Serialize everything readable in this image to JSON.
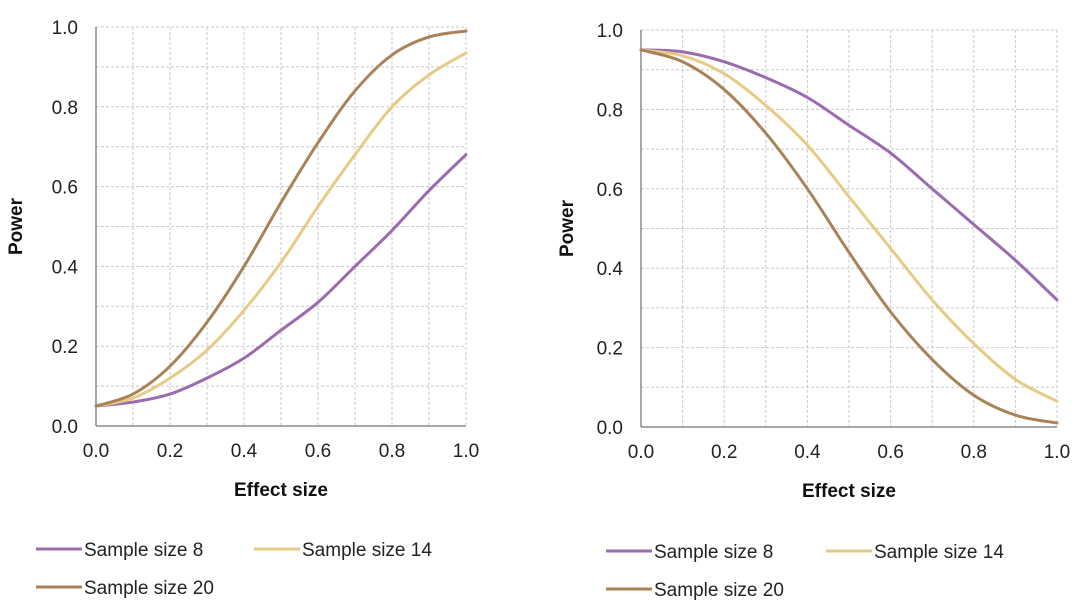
{
  "colors": {
    "sample_8": "#9B6BB0",
    "sample_14": "#E6CB86",
    "sample_20": "#A88359",
    "grid": "#c8c8c8",
    "axis": "#8a8a8a"
  },
  "chart_data": [
    {
      "type": "line",
      "xlabel": "Effect size",
      "ylabel": "Power",
      "xlim": [
        0,
        1
      ],
      "ylim": [
        0,
        1
      ],
      "x_ticks": [
        "0.0",
        "0.2",
        "0.4",
        "0.6",
        "0.8",
        "1.0"
      ],
      "y_ticks": [
        "0.0",
        "0.2",
        "0.4",
        "0.6",
        "0.8",
        "1.0"
      ],
      "grid": true,
      "legend_position": "bottom",
      "x": [
        0.0,
        0.1,
        0.2,
        0.3,
        0.4,
        0.5,
        0.6,
        0.7,
        0.8,
        0.9,
        1.0
      ],
      "series": [
        {
          "name": "Sample size 8",
          "color_key": "sample_8",
          "values": [
            0.05,
            0.06,
            0.08,
            0.12,
            0.17,
            0.24,
            0.31,
            0.4,
            0.49,
            0.59,
            0.68
          ]
        },
        {
          "name": "Sample size 14",
          "color_key": "sample_14",
          "values": [
            0.05,
            0.07,
            0.12,
            0.19,
            0.29,
            0.41,
            0.55,
            0.68,
            0.8,
            0.88,
            0.935
          ]
        },
        {
          "name": "Sample size 20",
          "color_key": "sample_20",
          "values": [
            0.05,
            0.08,
            0.15,
            0.26,
            0.4,
            0.56,
            0.71,
            0.84,
            0.93,
            0.975,
            0.99
          ]
        }
      ]
    },
    {
      "type": "line",
      "xlabel": "Effect size",
      "ylabel": "Power",
      "xlim": [
        0,
        1
      ],
      "ylim": [
        0,
        1
      ],
      "x_ticks": [
        "0.0",
        "0.2",
        "0.4",
        "0.6",
        "0.8",
        "1.0"
      ],
      "y_ticks": [
        "0.0",
        "0.2",
        "0.4",
        "0.6",
        "0.8",
        "1.0"
      ],
      "grid": true,
      "legend_position": "bottom",
      "x": [
        0.0,
        0.1,
        0.2,
        0.3,
        0.4,
        0.5,
        0.6,
        0.7,
        0.8,
        0.9,
        1.0
      ],
      "series": [
        {
          "name": "Sample size 8",
          "color_key": "sample_8",
          "values": [
            0.95,
            0.945,
            0.92,
            0.88,
            0.83,
            0.76,
            0.69,
            0.6,
            0.51,
            0.42,
            0.32
          ]
        },
        {
          "name": "Sample size 14",
          "color_key": "sample_14",
          "values": [
            0.95,
            0.935,
            0.89,
            0.81,
            0.71,
            0.58,
            0.45,
            0.32,
            0.21,
            0.12,
            0.065
          ]
        },
        {
          "name": "Sample size 20",
          "color_key": "sample_20",
          "values": [
            0.95,
            0.92,
            0.85,
            0.74,
            0.6,
            0.44,
            0.29,
            0.17,
            0.08,
            0.03,
            0.01
          ]
        }
      ]
    }
  ]
}
